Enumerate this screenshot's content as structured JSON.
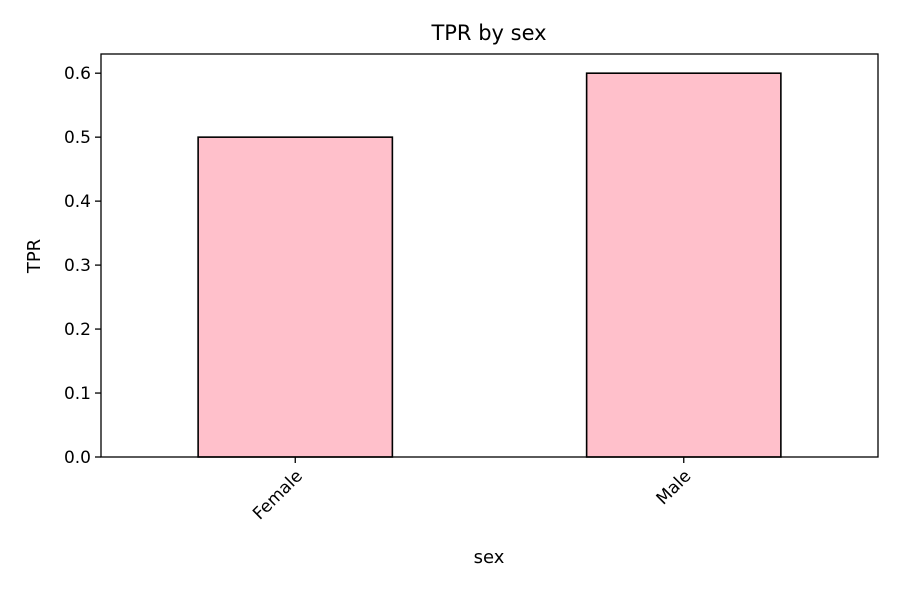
{
  "chart_data": {
    "type": "bar",
    "title": "TPR by sex",
    "xlabel": "sex",
    "ylabel": "TPR",
    "categories": [
      "Female",
      "Male"
    ],
    "values": [
      0.5,
      0.6
    ],
    "ylim": [
      0,
      0.63
    ],
    "yticks": [
      0.0,
      0.1,
      0.2,
      0.3,
      0.4,
      0.5,
      0.6
    ],
    "ytick_labels": [
      "0.0",
      "0.1",
      "0.2",
      "0.3",
      "0.4",
      "0.5",
      "0.6"
    ],
    "grid": false,
    "bar_color": "#ffc0cb",
    "bar_edge_color": "#000000"
  }
}
